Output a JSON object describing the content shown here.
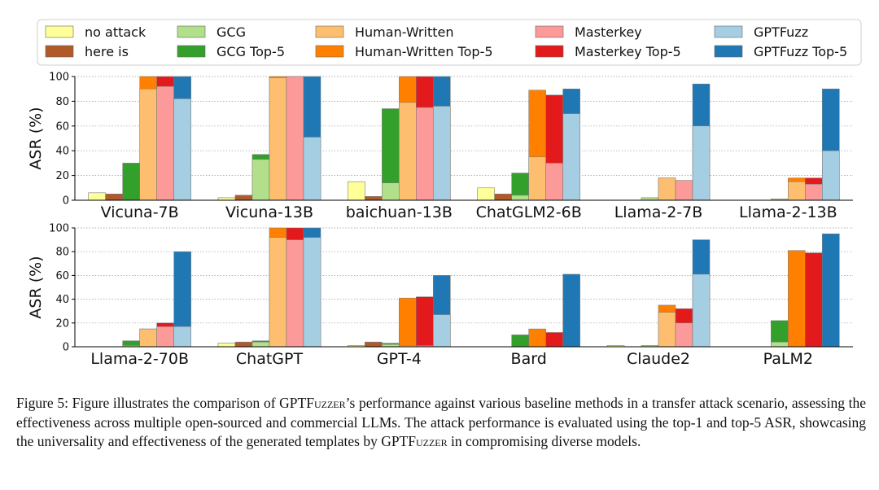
{
  "chart_data": {
    "type": "bar",
    "stacked": "top-1 bar drawn over top-5 bar for each method",
    "ylabel": "ASR (%)",
    "ylim": [
      0,
      100
    ],
    "yticks": [
      0,
      20,
      40,
      60,
      80,
      100
    ],
    "grid": "horizontal dotted",
    "legend": {
      "placement": "top",
      "entries": [
        {
          "key": "no_attack",
          "label": "no attack",
          "color": "#ffff99"
        },
        {
          "key": "here_is",
          "label": "here is",
          "color": "#b15928"
        },
        {
          "key": "gcg",
          "label": "GCG",
          "color": "#b2df8a"
        },
        {
          "key": "gcg_top5",
          "label": "GCG Top-5",
          "color": "#33a02c"
        },
        {
          "key": "human",
          "label": "Human-Written",
          "color": "#fdbf6f"
        },
        {
          "key": "human_top5",
          "label": "Human-Written Top-5",
          "color": "#ff7f00"
        },
        {
          "key": "masterkey",
          "label": "Masterkey",
          "color": "#fb9a99"
        },
        {
          "key": "masterkey_top5",
          "label": "Masterkey Top-5",
          "color": "#e31a1c"
        },
        {
          "key": "gptfuzz",
          "label": "GPTFuzz",
          "color": "#a6cee3"
        },
        {
          "key": "gptfuzz_top5",
          "label": "GPTFuzz Top-5",
          "color": "#1f78b4"
        }
      ]
    },
    "methods": [
      "no attack",
      "here is",
      "GCG",
      "Human-Written",
      "Masterkey",
      "GPTFuzz"
    ],
    "panels": [
      {
        "categories": [
          "Vicuna-7B",
          "Vicuna-13B",
          "baichuan-13B",
          "ChatGLM2-6B",
          "Llama-2-7B",
          "Llama-2-13B"
        ],
        "top1": [
          [
            6,
            5,
            0,
            90,
            92,
            82
          ],
          [
            2,
            4,
            33,
            99,
            100,
            51
          ],
          [
            15,
            3,
            14,
            79,
            75,
            76
          ],
          [
            10,
            5,
            4,
            35,
            30,
            70
          ],
          [
            0,
            0,
            2,
            18,
            16,
            60
          ],
          [
            0,
            0,
            1,
            15,
            13,
            40
          ]
        ],
        "top5": [
          [
            6,
            5,
            30,
            100,
            100,
            100
          ],
          [
            2,
            4,
            37,
            100,
            100,
            100
          ],
          [
            15,
            3,
            74,
            100,
            100,
            100
          ],
          [
            10,
            5,
            22,
            89,
            85,
            90
          ],
          [
            0,
            0,
            2,
            18,
            16,
            94
          ],
          [
            0,
            0,
            1,
            18,
            18,
            90
          ]
        ]
      },
      {
        "categories": [
          "Llama-2-70B",
          "ChatGPT",
          "GPT-4",
          "Bard",
          "Claude2",
          "PaLM2"
        ],
        "top1": [
          [
            0,
            0,
            1,
            15,
            17,
            17
          ],
          [
            3,
            3,
            4,
            92,
            90,
            92
          ],
          [
            1,
            3,
            2,
            1,
            1,
            27
          ],
          [
            0,
            0,
            0,
            0,
            0,
            0
          ],
          [
            1,
            0,
            1,
            29,
            20,
            61
          ],
          [
            0,
            0,
            4,
            0,
            0,
            0
          ]
        ],
        "top5": [
          [
            0,
            0,
            5,
            15,
            20,
            80
          ],
          [
            3,
            4,
            5,
            100,
            100,
            100
          ],
          [
            1,
            4,
            3,
            41,
            42,
            60
          ],
          [
            0,
            0,
            10,
            15,
            12,
            61
          ],
          [
            1,
            0,
            1,
            35,
            32,
            90
          ],
          [
            0,
            0,
            22,
            81,
            79,
            95
          ]
        ]
      }
    ]
  },
  "caption": {
    "prefix": "Figure 5: Figure illustrates the comparison of GPTF",
    "sc1": "uzzer",
    "mid": "’s performance against various baseline methods in a transfer attack scenario, assessing the effectiveness across multiple open-sourced and commercial LLMs. The attack performance is evaluated using the top-1 and top-5 ASR, showcasing the universality and effectiveness of the generated templates by GPTF",
    "sc2": "uzzer",
    "suffix": " in compromising diverse models."
  }
}
